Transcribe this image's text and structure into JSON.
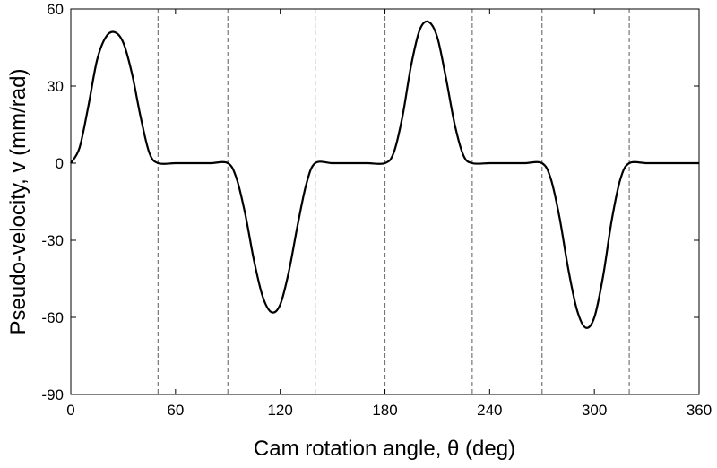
{
  "chart_data": {
    "type": "line",
    "xlabel": "Cam rotation angle, θ (deg)",
    "ylabel": "Pseudo-velocity, v (mm/rad)",
    "xlim": [
      0,
      360
    ],
    "ylim": [
      -90,
      60
    ],
    "xticks": [
      0,
      60,
      120,
      180,
      240,
      300,
      360
    ],
    "yticks": [
      -90,
      -60,
      -30,
      0,
      30,
      60
    ],
    "grid": false,
    "reference_lines_x": [
      50,
      90,
      140,
      180,
      230,
      270,
      320
    ],
    "series": [
      {
        "x": [
          0,
          5,
          10,
          15,
          20,
          25,
          30,
          35,
          40,
          45,
          50,
          60,
          70,
          80,
          90,
          95,
          100,
          105,
          110,
          115,
          120,
          125,
          130,
          135,
          140,
          150,
          160,
          170,
          180,
          185,
          190,
          195,
          200,
          205,
          210,
          215,
          220,
          225,
          230,
          240,
          250,
          260,
          270,
          275,
          280,
          285,
          290,
          295,
          300,
          305,
          310,
          315,
          320,
          330,
          340,
          350,
          360
        ],
        "y": [
          0,
          6,
          22,
          40,
          49,
          51,
          47,
          35,
          18,
          4,
          0,
          0,
          0,
          0,
          0,
          -6,
          -20,
          -38,
          -52,
          -58,
          -55,
          -42,
          -24,
          -8,
          0,
          0,
          0,
          0,
          0,
          4,
          18,
          38,
          52,
          55,
          49,
          33,
          15,
          3,
          0,
          0,
          0,
          0,
          0,
          -6,
          -21,
          -41,
          -57,
          -64,
          -60,
          -44,
          -22,
          -6,
          0,
          0,
          0,
          0,
          0
        ]
      }
    ]
  }
}
